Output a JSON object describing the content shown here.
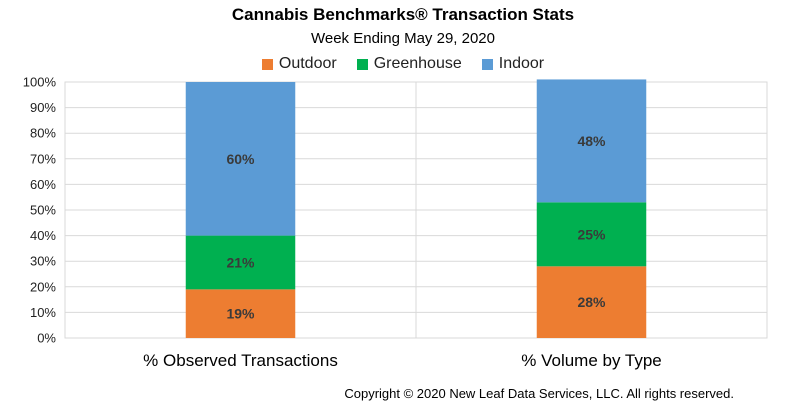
{
  "chart_data": {
    "type": "bar",
    "stacked": true,
    "percent_stacked": true,
    "title": "Cannabis Benchmarks® Transaction Stats",
    "subtitle": "Week Ending May 29, 2020",
    "categories": [
      "% Observed Transactions",
      "% Volume by Type"
    ],
    "series": [
      {
        "name": "Outdoor",
        "color": "#ED7D31",
        "values": [
          19,
          28
        ],
        "labels": [
          "19%",
          "28%"
        ]
      },
      {
        "name": "Greenhouse",
        "color": "#00B050",
        "values": [
          21,
          25
        ],
        "labels": [
          "21%",
          "25%"
        ]
      },
      {
        "name": "Indoor",
        "color": "#5B9BD5",
        "values": [
          60,
          48
        ],
        "labels": [
          "60%",
          "48%"
        ]
      }
    ],
    "ylim": [
      0,
      100
    ],
    "yticks": [
      "0%",
      "10%",
      "20%",
      "30%",
      "40%",
      "50%",
      "60%",
      "70%",
      "80%",
      "90%",
      "100%"
    ],
    "grid": true,
    "legend": "top-center",
    "xlabel": "",
    "ylabel": ""
  },
  "footer": {
    "copyright": "Copyright © 2020 New Leaf Data Services, LLC. All rights reserved."
  }
}
